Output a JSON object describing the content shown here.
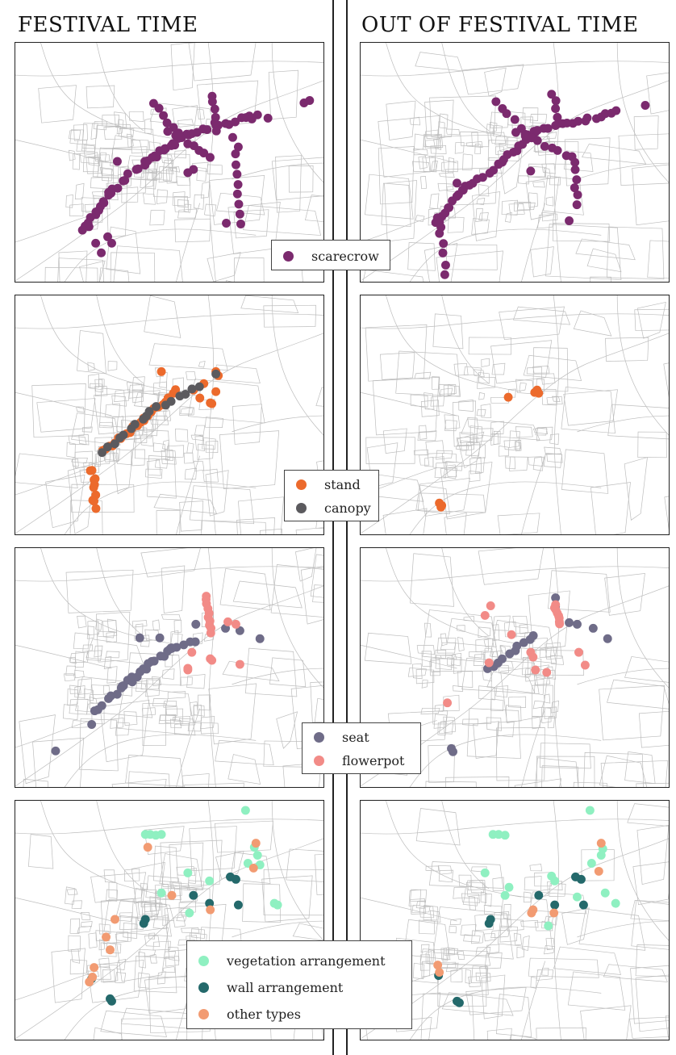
{
  "titles": {
    "left": "FESTIVAL TIME",
    "right": "OUT OF FESTIVAL TIME"
  },
  "legends": {
    "scarecrow": [
      {
        "label": "scarecrow",
        "color": "#7b2a6e"
      }
    ],
    "stand_canopy": [
      {
        "label": "stand",
        "color": "#ec6a2c"
      },
      {
        "label": "canopy",
        "color": "#5b5a5e"
      }
    ],
    "seat_flowerpot": [
      {
        "label": "seat",
        "color": "#6f6c88"
      },
      {
        "label": "flowerpot",
        "color": "#f28b87"
      }
    ],
    "arrangements": [
      {
        "label": "vegetation arrangement",
        "color": "#8ff0c1"
      },
      {
        "label": "wall arrangement",
        "color": "#24696b"
      },
      {
        "label": "other types",
        "color": "#f29b72"
      }
    ]
  },
  "map_icons": {
    "basemap": "street-network-basemap"
  }
}
